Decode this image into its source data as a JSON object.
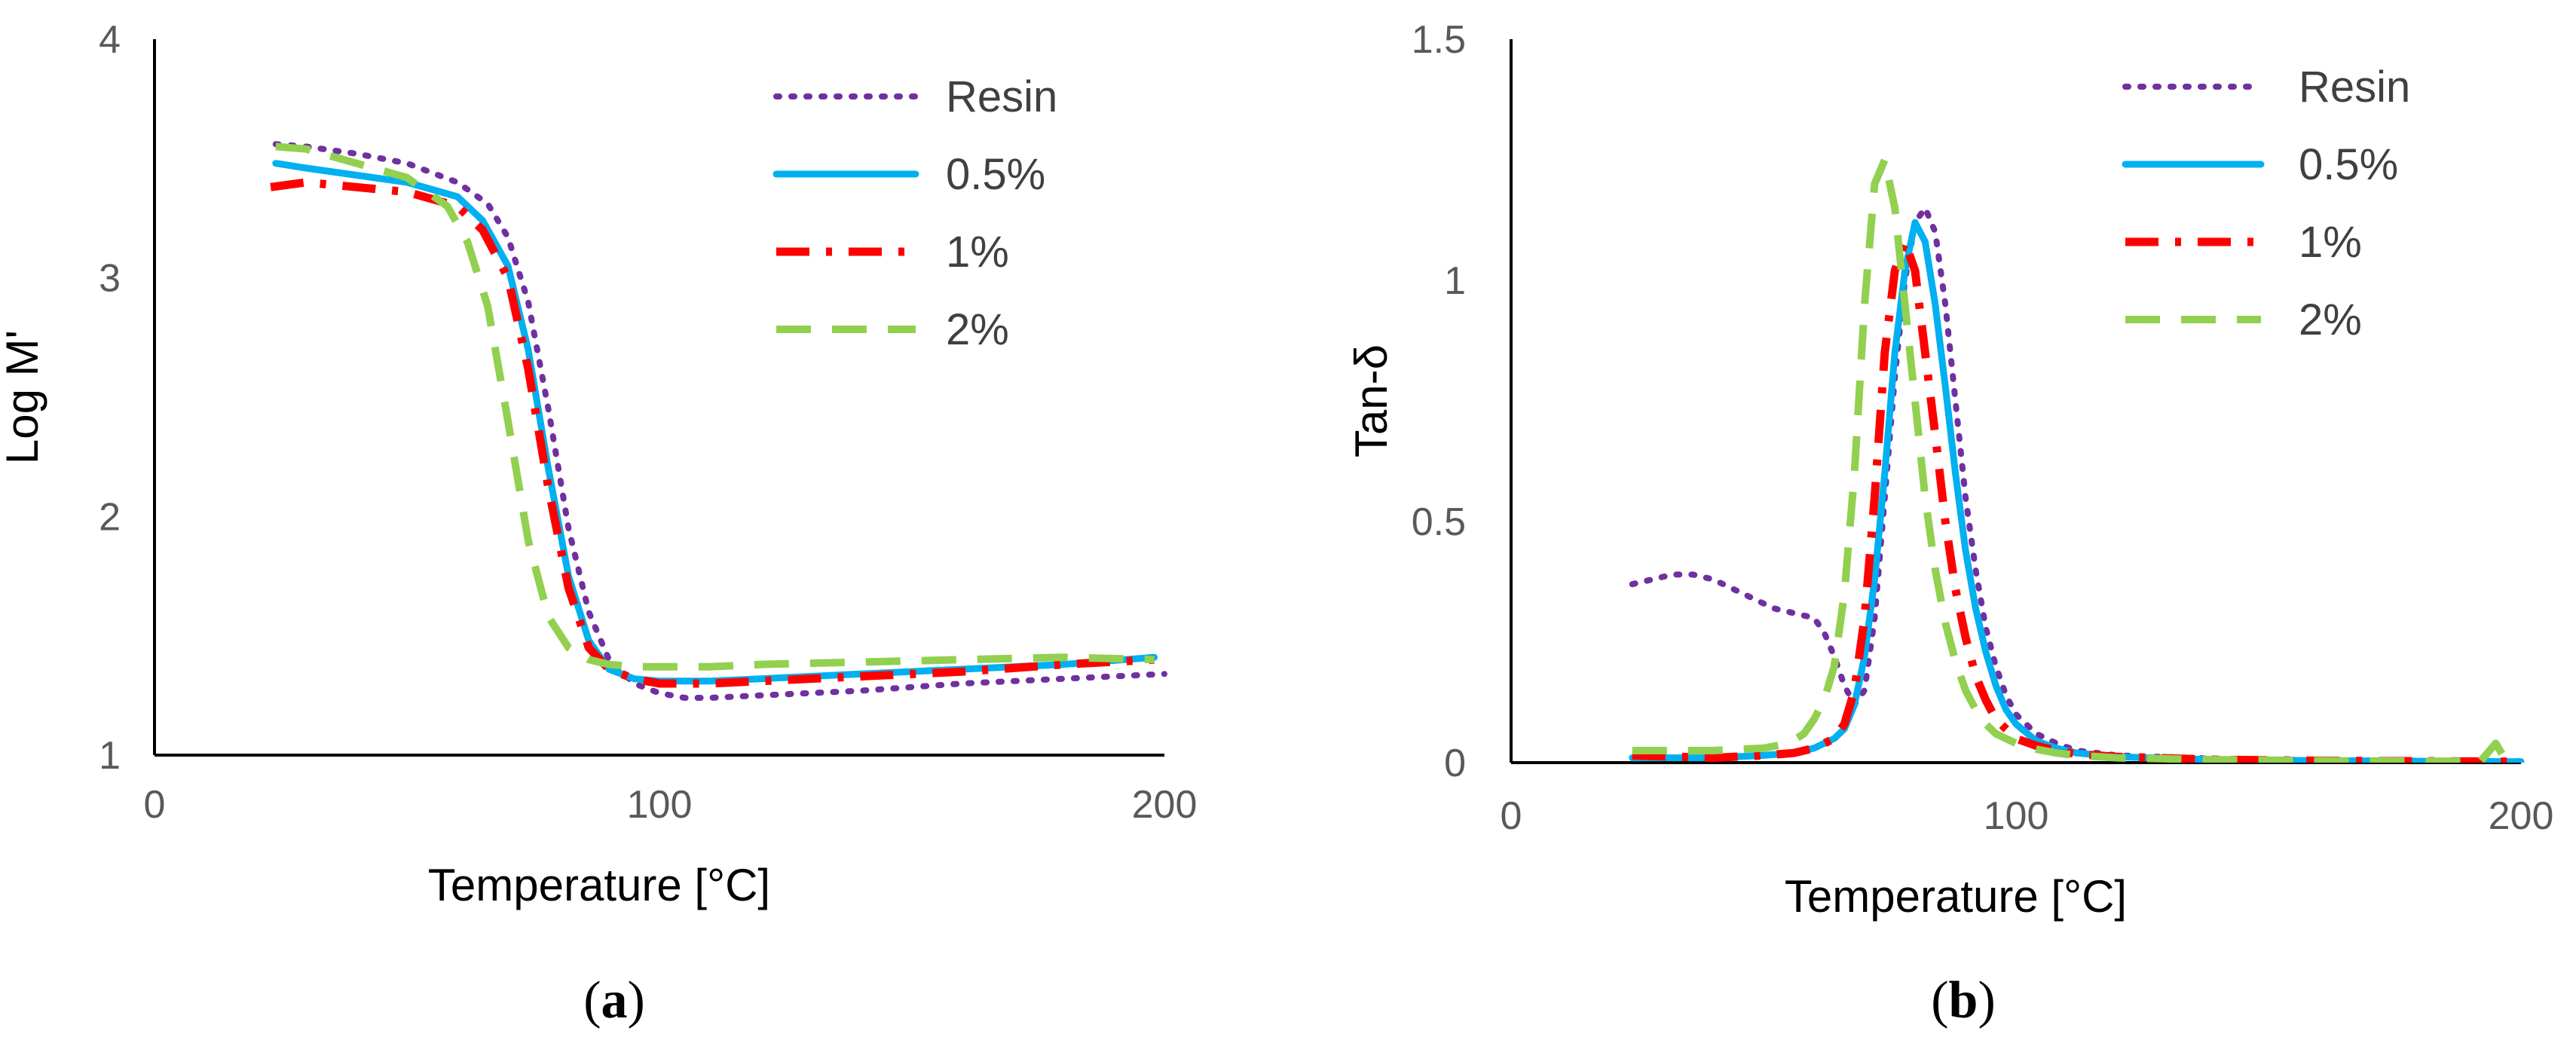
{
  "colors": {
    "Resin": "#7030A0",
    "0.5%": "#00B0F0",
    "1%": "#FF0000",
    "2%": "#92D050",
    "axis": "#000000",
    "tick_text": "#595959"
  },
  "chart_data": [
    {
      "type": "line",
      "panel": "a",
      "caption": {
        "open": "(",
        "letter": "a",
        "close": ")"
      },
      "xlabel": "Temperature [°C]",
      "ylabel": "Log M'",
      "xlim": [
        0,
        200
      ],
      "ylim": [
        1,
        4
      ],
      "xticks": [
        "0",
        "100",
        "200"
      ],
      "yticks": [
        "1",
        "2",
        "3",
        "4"
      ],
      "xtick_values": [
        0,
        100,
        200
      ],
      "ytick_values": [
        1,
        2,
        3,
        4
      ],
      "grid": false,
      "legend_position": "top-right",
      "series": [
        {
          "name": "Resin",
          "style": "dotted",
          "x": [
            24,
            30,
            40,
            50,
            60,
            66,
            70,
            74,
            78,
            82,
            86,
            90,
            95,
            100,
            105,
            110,
            120,
            140,
            160,
            180,
            200
          ],
          "y": [
            3.56,
            3.55,
            3.52,
            3.48,
            3.4,
            3.31,
            3.17,
            2.9,
            2.45,
            1.95,
            1.6,
            1.4,
            1.3,
            1.26,
            1.24,
            1.24,
            1.25,
            1.27,
            1.3,
            1.32,
            1.34
          ]
        },
        {
          "name": "0.5%",
          "style": "solid",
          "x": [
            24,
            30,
            40,
            50,
            60,
            65,
            70,
            74,
            78,
            82,
            86,
            90,
            95,
            100,
            110,
            120,
            140,
            160,
            180,
            198
          ],
          "y": [
            3.48,
            3.46,
            3.43,
            3.4,
            3.34,
            3.24,
            3.05,
            2.7,
            2.2,
            1.75,
            1.48,
            1.36,
            1.32,
            1.31,
            1.31,
            1.32,
            1.34,
            1.36,
            1.38,
            1.41
          ]
        },
        {
          "name": "1%",
          "style": "dashdot",
          "x": [
            23,
            30,
            40,
            50,
            60,
            65,
            70,
            74,
            78,
            82,
            86,
            90,
            95,
            100,
            110,
            120,
            140,
            160,
            180,
            198
          ],
          "y": [
            3.38,
            3.4,
            3.38,
            3.36,
            3.3,
            3.2,
            3.0,
            2.62,
            2.12,
            1.7,
            1.45,
            1.36,
            1.32,
            1.3,
            1.3,
            1.31,
            1.33,
            1.35,
            1.38,
            1.4
          ]
        },
        {
          "name": "2%",
          "style": "dashed",
          "x": [
            24,
            30,
            40,
            50,
            58,
            62,
            66,
            70,
            74,
            78,
            82,
            86,
            90,
            95,
            100,
            110,
            120,
            140,
            160,
            180,
            198
          ],
          "y": [
            3.55,
            3.54,
            3.48,
            3.42,
            3.3,
            3.15,
            2.88,
            2.4,
            1.9,
            1.58,
            1.45,
            1.4,
            1.38,
            1.37,
            1.37,
            1.37,
            1.38,
            1.39,
            1.4,
            1.41,
            1.4
          ]
        }
      ]
    },
    {
      "type": "line",
      "panel": "b",
      "caption": {
        "open": "(",
        "letter": "b",
        "close": ")"
      },
      "xlabel": "Temperature [°C]",
      "ylabel": "Tan-δ",
      "xlim": [
        0,
        200
      ],
      "ylim": [
        0,
        1.5
      ],
      "xticks": [
        "0",
        "100",
        "200"
      ],
      "yticks": [
        "0",
        "0.5",
        "1",
        "1.5"
      ],
      "xtick_values": [
        0,
        100,
        200
      ],
      "ytick_values": [
        0,
        0.5,
        1,
        1.5
      ],
      "grid": false,
      "legend_position": "top-right",
      "series": [
        {
          "name": "Resin",
          "style": "dotted",
          "x": [
            24,
            28,
            32,
            36,
            40,
            44,
            48,
            52,
            56,
            60,
            62,
            64,
            66,
            68,
            70,
            72,
            74,
            76,
            78,
            80,
            82,
            84,
            86,
            88,
            90,
            92,
            94,
            96,
            98,
            100,
            104,
            108,
            112,
            120,
            140,
            160,
            180,
            200
          ],
          "y": [
            0.37,
            0.38,
            0.39,
            0.39,
            0.38,
            0.36,
            0.34,
            0.32,
            0.31,
            0.3,
            0.27,
            0.22,
            0.16,
            0.12,
            0.15,
            0.3,
            0.55,
            0.8,
            1.0,
            1.12,
            1.15,
            1.1,
            0.95,
            0.75,
            0.55,
            0.4,
            0.28,
            0.2,
            0.14,
            0.1,
            0.06,
            0.04,
            0.025,
            0.015,
            0.008,
            0.005,
            0.004,
            0.003
          ]
        },
        {
          "name": "0.5%",
          "style": "solid",
          "x": [
            24,
            40,
            50,
            56,
            60,
            64,
            66,
            68,
            70,
            72,
            74,
            76,
            78,
            80,
            82,
            84,
            86,
            88,
            90,
            92,
            94,
            96,
            98,
            100,
            104,
            108,
            112,
            120,
            140,
            160,
            180,
            200
          ],
          "y": [
            0.01,
            0.01,
            0.015,
            0.02,
            0.03,
            0.05,
            0.07,
            0.12,
            0.22,
            0.38,
            0.6,
            0.85,
            1.02,
            1.12,
            1.08,
            0.95,
            0.78,
            0.6,
            0.44,
            0.32,
            0.23,
            0.16,
            0.11,
            0.08,
            0.045,
            0.03,
            0.02,
            0.012,
            0.006,
            0.004,
            0.003,
            0.002
          ]
        },
        {
          "name": "1%",
          "style": "dashdot",
          "x": [
            24,
            40,
            50,
            56,
            60,
            64,
            66,
            68,
            70,
            72,
            74,
            76,
            78,
            80,
            82,
            84,
            86,
            88,
            90,
            92,
            94,
            96,
            98,
            100,
            104,
            108,
            112,
            120,
            140,
            160,
            180,
            200
          ],
          "y": [
            0.015,
            0.01,
            0.015,
            0.02,
            0.03,
            0.05,
            0.08,
            0.15,
            0.3,
            0.55,
            0.85,
            1.02,
            1.08,
            1.02,
            0.85,
            0.68,
            0.5,
            0.36,
            0.26,
            0.18,
            0.13,
            0.09,
            0.07,
            0.05,
            0.035,
            0.025,
            0.018,
            0.012,
            0.006,
            0.004,
            0.003,
            0.002
          ]
        },
        {
          "name": "2%",
          "style": "dashed",
          "x": [
            24,
            40,
            50,
            55,
            58,
            60,
            62,
            64,
            66,
            68,
            70,
            72,
            74,
            76,
            78,
            80,
            82,
            84,
            86,
            88,
            90,
            92,
            94,
            96,
            100,
            104,
            108,
            112,
            120,
            140,
            160,
            180,
            192,
            195,
            197
          ],
          "y": [
            0.025,
            0.025,
            0.03,
            0.04,
            0.06,
            0.09,
            0.13,
            0.2,
            0.35,
            0.6,
            0.95,
            1.2,
            1.25,
            1.15,
            0.95,
            0.75,
            0.55,
            0.4,
            0.29,
            0.21,
            0.15,
            0.11,
            0.08,
            0.06,
            0.04,
            0.028,
            0.02,
            0.015,
            0.01,
            0.006,
            0.004,
            0.003,
            0.003,
            0.04,
            0.005
          ]
        }
      ]
    }
  ]
}
